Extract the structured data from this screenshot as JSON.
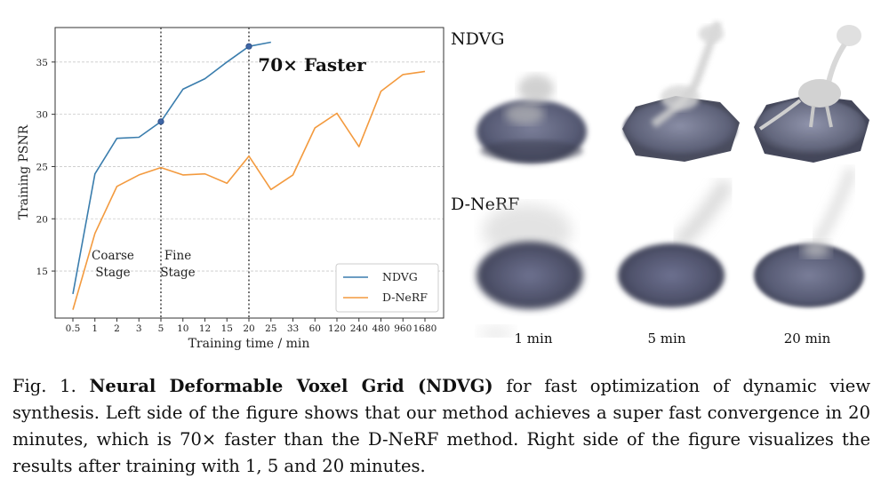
{
  "chart_data": {
    "type": "line",
    "ylabel": "Training PSNR",
    "xlabel": "Training time / min",
    "x_ticks": [
      "0.5",
      "1",
      "2",
      "3",
      "5",
      "10",
      "12",
      "15",
      "20",
      "25",
      "33",
      "60",
      "120",
      "240",
      "480",
      "960",
      "1680"
    ],
    "y_ticks": [
      15,
      20,
      25,
      30,
      35
    ],
    "ylim": [
      10.5,
      38.3
    ],
    "grid": "horizontal dashed",
    "legend_position": "bottom-right",
    "series": [
      {
        "name": "NDVG",
        "color": "#3a7dad",
        "points": [
          {
            "x": "0.5",
            "y": 12.8
          },
          {
            "x": "1",
            "y": 24.3
          },
          {
            "x": "2",
            "y": 27.7
          },
          {
            "x": "3",
            "y": 27.8
          },
          {
            "x": "5",
            "y": 29.3
          },
          {
            "x": "10",
            "y": 32.4
          },
          {
            "x": "12",
            "y": 33.4
          },
          {
            "x": "15",
            "y": 35.0
          },
          {
            "x": "20",
            "y": 36.5
          },
          {
            "x": "25",
            "y": 36.9
          }
        ],
        "markers": [
          {
            "x": "5",
            "y": 29.3
          },
          {
            "x": "20",
            "y": 36.5
          }
        ]
      },
      {
        "name": "D-NeRF",
        "color": "#f39a3e",
        "points": [
          {
            "x": "0.5",
            "y": 11.3
          },
          {
            "x": "1",
            "y": 18.6
          },
          {
            "x": "2",
            "y": 23.1
          },
          {
            "x": "3",
            "y": 24.2
          },
          {
            "x": "5",
            "y": 24.9
          },
          {
            "x": "10",
            "y": 24.2
          },
          {
            "x": "12",
            "y": 24.3
          },
          {
            "x": "15",
            "y": 23.4
          },
          {
            "x": "20",
            "y": 26.0
          },
          {
            "x": "25",
            "y": 22.8
          },
          {
            "x": "33",
            "y": 24.2
          },
          {
            "x": "60",
            "y": 28.7
          },
          {
            "x": "120",
            "y": 30.1
          },
          {
            "x": "240",
            "y": 26.9
          },
          {
            "x": "480",
            "y": 32.2
          },
          {
            "x": "960",
            "y": 33.8
          },
          {
            "x": "1680",
            "y": 34.1
          }
        ]
      }
    ],
    "vlines": [
      "5",
      "20"
    ],
    "annotations": {
      "coarse_line1": "Coarse",
      "coarse_line2": "Stage",
      "fine_line1": "Fine",
      "fine_line2": "Stage",
      "speedup": "70× Faster"
    }
  },
  "renders": {
    "row_labels": [
      "NDVG",
      "D-NeRF"
    ],
    "col_labels": [
      "1 min",
      "5 min",
      "20 min"
    ]
  },
  "caption": {
    "prefix": "Fig. 1. ",
    "bold": "Neural Deformable Voxel Grid (NDVG)",
    "rest": " for fast optimization of dynamic view synthesis. Left side of the figure shows that our method achieves a super fast convergence in 20 minutes, which is 70× faster than the D-NeRF method. Right side of the figure visualizes the results after training with 1, 5 and 20 minutes."
  }
}
